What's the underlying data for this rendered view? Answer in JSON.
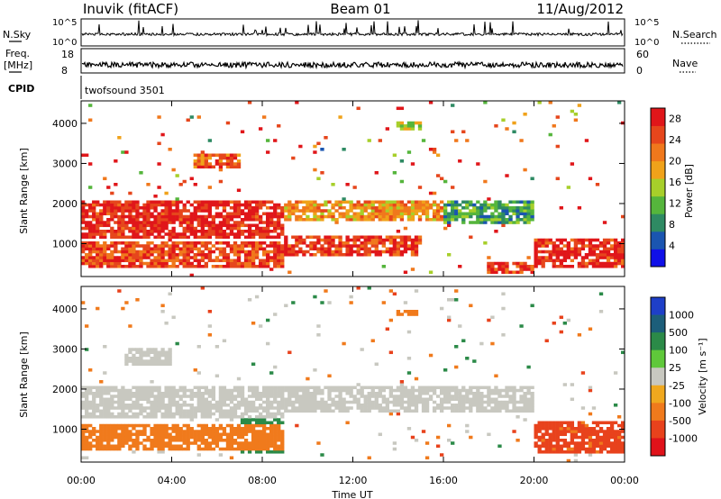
{
  "header": {
    "station": "Inuvik (fitACF)",
    "beam": "Beam 01",
    "date": "11/Aug/2012"
  },
  "nsky_panel": {
    "left_label": "N.Sky",
    "right_label": "N.Search",
    "y_top": "10^5",
    "y_bottom": "10^0"
  },
  "freq_panel": {
    "left_label_1": "Freq.",
    "left_label_2": "[MHz]",
    "y_top": "18",
    "y_bottom": "8",
    "right_label": "Nave",
    "right_top": "60",
    "right_bottom": "0"
  },
  "cpid_panel": {
    "label": "CPID",
    "value": "twofsound 3501"
  },
  "chart_data": [
    {
      "type": "heatmap",
      "title": "",
      "ylabel": "Slant Range [km]",
      "xlabel": "",
      "ylim": [
        180,
        4560
      ],
      "xlim": [
        0,
        24
      ],
      "yticks": [
        "1000",
        "2000",
        "3000",
        "4000"
      ],
      "ytick_values": [
        1000,
        2000,
        3000,
        4000
      ],
      "colorbar": {
        "label": "Power [dB]",
        "ticks": [
          "4",
          "8",
          "12",
          "16",
          "20",
          "24",
          "28"
        ],
        "tick_values": [
          4,
          8,
          12,
          16,
          20,
          24,
          28
        ],
        "range": [
          0,
          30
        ],
        "colors": [
          "#1010e8",
          "#1a55b0",
          "#2e8a63",
          "#55b53c",
          "#a7cf2a",
          "#f0a21a",
          "#f0781c",
          "#e6461c",
          "#e0161a"
        ]
      },
      "regions": [
        {
          "x": [
            0,
            9
          ],
          "y": [
            1100,
            2050
          ],
          "value": 28
        },
        {
          "x": [
            0,
            9
          ],
          "y": [
            380,
            1050
          ],
          "value": 25
        },
        {
          "x": [
            9,
            15
          ],
          "y": [
            700,
            1200
          ],
          "value": 26
        },
        {
          "x": [
            9,
            16
          ],
          "y": [
            1600,
            2100
          ],
          "value": 20
        },
        {
          "x": [
            16,
            20
          ],
          "y": [
            1500,
            2100
          ],
          "value": 10
        },
        {
          "x": [
            20,
            24
          ],
          "y": [
            400,
            1100
          ],
          "value": 27
        },
        {
          "x": [
            18,
            20
          ],
          "y": [
            250,
            550
          ],
          "value": 26
        },
        {
          "x": [
            5,
            7
          ],
          "y": [
            2850,
            3250
          ],
          "value": 23
        },
        {
          "x": [
            14,
            15
          ],
          "y": [
            3800,
            4050
          ],
          "value": 15
        }
      ]
    },
    {
      "type": "heatmap",
      "title": "",
      "ylabel": "Slant Range [km]",
      "xlabel": "Time UT",
      "ylim": [
        180,
        4560
      ],
      "xlim": [
        0,
        24
      ],
      "yticks": [
        "1000",
        "2000",
        "3000",
        "4000"
      ],
      "ytick_values": [
        1000,
        2000,
        3000,
        4000
      ],
      "xticks": [
        "00:00",
        "04:00",
        "08:00",
        "12:00",
        "16:00",
        "20:00",
        "00:00"
      ],
      "xtick_values": [
        0,
        4,
        8,
        12,
        16,
        20,
        24
      ],
      "colorbar": {
        "label": "Velocity [m s⁻¹]",
        "ticks": [
          "1000",
          "500",
          "100",
          "25",
          "-25",
          "-100",
          "-500",
          "-1000"
        ],
        "tick_values": [
          1000,
          500,
          100,
          25,
          -25,
          -100,
          -500,
          -1000
        ],
        "colors": [
          "#1e3fc8",
          "#1c5e7a",
          "#2b8a48",
          "#5fc83a",
          "#c8c8c0",
          "#f0a81e",
          "#f07a1c",
          "#e8421c",
          "#e0121a"
        ]
      },
      "regions": [
        {
          "x": [
            0,
            9
          ],
          "y": [
            1300,
            2050
          ],
          "value": 0
        },
        {
          "x": [
            0,
            9
          ],
          "y": [
            500,
            1100
          ],
          "value": -250
        },
        {
          "x": [
            7,
            9
          ],
          "y": [
            400,
            1500
          ],
          "value": 200
        },
        {
          "x": [
            9,
            20
          ],
          "y": [
            1400,
            2100
          ],
          "value": 0
        },
        {
          "x": [
            20,
            24
          ],
          "y": [
            400,
            1200
          ],
          "value": -700
        },
        {
          "x": [
            2,
            4
          ],
          "y": [
            2600,
            3000
          ],
          "value": 0
        },
        {
          "x": [
            14,
            15
          ],
          "y": [
            3800,
            4000
          ],
          "value": -300
        }
      ]
    }
  ]
}
